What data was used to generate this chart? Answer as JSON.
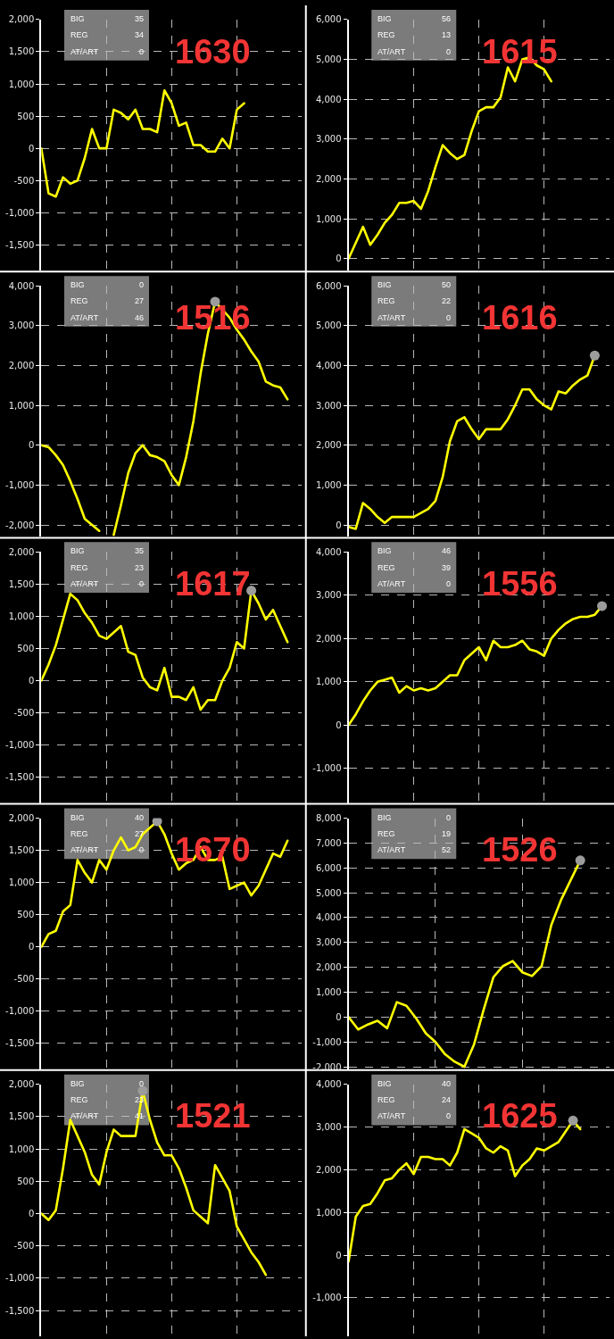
{
  "chart_data": [
    {
      "type": "line",
      "title": "1630",
      "categories": [
        null,
        null,
        null,
        null,
        null,
        null,
        null,
        null,
        null,
        null,
        null,
        null,
        null,
        null,
        null,
        null,
        null,
        null,
        null,
        null,
        null,
        null,
        null,
        null,
        null,
        null,
        null,
        null,
        null,
        null,
        null,
        null,
        null,
        null,
        null,
        null,
        null
      ],
      "series": [
        {
          "color": "#ffff00",
          "values": [
            0,
            -700,
            -750,
            -450,
            -550,
            -500,
            -150,
            300,
            0,
            0,
            600,
            550,
            450,
            600,
            300,
            300,
            250,
            900,
            700,
            350,
            400,
            50,
            50,
            -50,
            -50,
            150,
            0,
            600,
            700,
            null,
            null,
            null,
            null,
            null,
            null,
            null,
            null
          ]
        }
      ],
      "ylim": [
        -1900,
        2000
      ],
      "yticks": [
        {
          "value": 2000,
          "label": "2,000"
        },
        {
          "value": 1500,
          "label": "1,500"
        },
        {
          "value": 1000,
          "label": "1,000"
        },
        500,
        0,
        -500,
        {
          "value": -1000,
          "label": "-1,000"
        },
        {
          "value": -1500,
          "label": "-1,500"
        }
      ],
      "grid": true,
      "tick_labels": "y",
      "annotations": [
        "BIG",
        "35",
        "REG",
        "34",
        "AT/ART",
        "0"
      ]
    },
    {
      "type": "line",
      "title": "1615",
      "categories": [
        null,
        null,
        null,
        null,
        null,
        null,
        null,
        null,
        null,
        null,
        null,
        null,
        null,
        null,
        null,
        null,
        null,
        null,
        null,
        null,
        null,
        null,
        null,
        null,
        null,
        null,
        null,
        null,
        null,
        null,
        null,
        null,
        null,
        null,
        null,
        null,
        null
      ],
      "series": [
        {
          "color": "#ffff00",
          "values": [
            0,
            400,
            800,
            350,
            600,
            900,
            1100,
            1400,
            1400,
            1450,
            1250,
            1700,
            2300,
            2850,
            2650,
            2500,
            2600,
            3200,
            3700,
            3800,
            3800,
            4050,
            4800,
            4450,
            5000,
            5050,
            4850,
            4750,
            4450,
            null,
            null,
            null,
            null,
            null,
            null,
            null,
            null
          ]
        }
      ],
      "ylim": [
        -300,
        6000
      ],
      "yticks": [
        {
          "value": 6000,
          "label": "6,000"
        },
        {
          "value": 5000,
          "label": "5,000"
        },
        {
          "value": 4000,
          "label": "4,000"
        },
        {
          "value": 3000,
          "label": "3,000"
        },
        {
          "value": 2000,
          "label": "2,000"
        },
        {
          "value": 1000,
          "label": "1,000"
        },
        0
      ],
      "grid": true,
      "tick_labels": "y",
      "annotations": [
        "BIG",
        "56",
        "REG",
        "13",
        "AT/ART",
        "0"
      ]
    },
    {
      "type": "line",
      "title": "1516",
      "categories": [
        null,
        null,
        null,
        null,
        null,
        null,
        null,
        null,
        null,
        null,
        null,
        null,
        null,
        null,
        null,
        null,
        null,
        null,
        null,
        null,
        null,
        null,
        null,
        null,
        null,
        null,
        null,
        null,
        null,
        null,
        null,
        null,
        null,
        null,
        null,
        null,
        null
      ],
      "series": [
        {
          "color": "#ffff00",
          "values": [
            0,
            -50,
            -250,
            -500,
            -900,
            -1350,
            -1850,
            -2000,
            -2150,
            null,
            -2250,
            -1500,
            -700,
            -200,
            0,
            -250,
            -300,
            -400,
            -750,
            -1000,
            -300,
            600,
            1800,
            2800,
            3600,
            3400,
            3200,
            2900,
            2650,
            2350,
            2100,
            1600,
            1500,
            1450,
            1150,
            null,
            null
          ]
        },
        {
          "type": "scatter",
          "color": "#9c9c9c",
          "values": [
            null,
            null,
            null,
            null,
            null,
            null,
            null,
            null,
            null,
            null,
            null,
            null,
            null,
            null,
            null,
            null,
            null,
            null,
            null,
            null,
            null,
            null,
            null,
            null,
            3600,
            null,
            null,
            null,
            null,
            null,
            null,
            null,
            null,
            null,
            null,
            null,
            null
          ]
        }
      ],
      "ylim": [
        -2300,
        4000
      ],
      "yticks": [
        {
          "value": 4000,
          "label": "4,000"
        },
        {
          "value": 3000,
          "label": "3,000"
        },
        {
          "value": 2000,
          "label": "2,000"
        },
        {
          "value": 1000,
          "label": "1,000"
        },
        0,
        {
          "value": -1000,
          "label": "-1,000"
        },
        {
          "value": -2000,
          "label": "-2,000"
        }
      ],
      "grid": true,
      "tick_labels": "y",
      "annotations": [
        "BIG",
        "0",
        "REG",
        "27",
        "AT/ART",
        "46"
      ]
    },
    {
      "type": "line",
      "title": "1616",
      "categories": [
        null,
        null,
        null,
        null,
        null,
        null,
        null,
        null,
        null,
        null,
        null,
        null,
        null,
        null,
        null,
        null,
        null,
        null,
        null,
        null,
        null,
        null,
        null,
        null,
        null,
        null,
        null,
        null,
        null,
        null,
        null,
        null,
        null,
        null,
        null,
        null,
        null
      ],
      "series": [
        {
          "color": "#ffff00",
          "values": [
            -50,
            -100,
            550,
            400,
            200,
            50,
            200,
            200,
            200,
            200,
            300,
            400,
            600,
            1200,
            2100,
            2600,
            2700,
            2400,
            2150,
            2400,
            2400,
            2400,
            2650,
            3000,
            3400,
            3400,
            3150,
            3000,
            2900,
            3350,
            3300,
            3500,
            3650,
            3750,
            4250,
            null,
            null
          ]
        },
        {
          "type": "scatter",
          "color": "#9c9c9c",
          "values": [
            null,
            null,
            null,
            null,
            null,
            null,
            null,
            null,
            null,
            null,
            null,
            null,
            null,
            null,
            null,
            null,
            null,
            null,
            null,
            null,
            null,
            null,
            null,
            null,
            null,
            null,
            null,
            null,
            null,
            null,
            null,
            null,
            null,
            null,
            4250,
            null,
            null
          ]
        }
      ],
      "ylim": [
        -300,
        6000
      ],
      "yticks": [
        {
          "value": 6000,
          "label": "6,000"
        },
        {
          "value": 5000,
          "label": "5,000"
        },
        {
          "value": 4000,
          "label": "4,000"
        },
        {
          "value": 3000,
          "label": "3,000"
        },
        {
          "value": 2000,
          "label": "2,000"
        },
        {
          "value": 1000,
          "label": "1,000"
        },
        0
      ],
      "grid": true,
      "tick_labels": "y",
      "annotations": [
        "BIG",
        "50",
        "REG",
        "22",
        "AT/ART",
        "0"
      ]
    },
    {
      "type": "line",
      "title": "1617",
      "categories": [
        null,
        null,
        null,
        null,
        null,
        null,
        null,
        null,
        null,
        null,
        null,
        null,
        null,
        null,
        null,
        null,
        null,
        null,
        null,
        null,
        null,
        null,
        null,
        null,
        null,
        null,
        null,
        null,
        null,
        null,
        null,
        null,
        null,
        null,
        null,
        null,
        null
      ],
      "series": [
        {
          "color": "#ffff00",
          "values": [
            0,
            250,
            550,
            950,
            1350,
            1250,
            1050,
            900,
            700,
            650,
            750,
            850,
            450,
            400,
            50,
            -100,
            -150,
            200,
            -250,
            -250,
            -300,
            -100,
            -450,
            -300,
            -300,
            0,
            200,
            600,
            500,
            1400,
            1200,
            950,
            1100,
            850,
            600,
            null,
            null
          ]
        },
        {
          "type": "scatter",
          "color": "#9c9c9c",
          "values": [
            null,
            null,
            null,
            null,
            null,
            null,
            null,
            null,
            null,
            null,
            null,
            null,
            null,
            null,
            null,
            null,
            null,
            null,
            null,
            null,
            null,
            null,
            null,
            null,
            null,
            null,
            null,
            null,
            null,
            1400,
            null,
            null,
            null,
            null,
            null,
            null,
            null
          ]
        }
      ],
      "ylim": [
        -1900,
        2000
      ],
      "yticks": [
        {
          "value": 2000,
          "label": "2,000"
        },
        {
          "value": 1500,
          "label": "1,500"
        },
        {
          "value": 1000,
          "label": "1,000"
        },
        500,
        0,
        -500,
        {
          "value": -1000,
          "label": "-1,000"
        },
        {
          "value": -1500,
          "label": "-1,500"
        }
      ],
      "grid": true,
      "tick_labels": "y",
      "annotations": [
        "BIG",
        "35",
        "REG",
        "23",
        "AT/ART",
        "0"
      ]
    },
    {
      "type": "line",
      "title": "1556",
      "categories": [
        null,
        null,
        null,
        null,
        null,
        null,
        null,
        null,
        null,
        null,
        null,
        null,
        null,
        null,
        null,
        null,
        null,
        null,
        null,
        null,
        null,
        null,
        null,
        null,
        null,
        null,
        null,
        null,
        null,
        null,
        null,
        null,
        null,
        null,
        null,
        null,
        null
      ],
      "series": [
        {
          "color": "#ffff00",
          "values": [
            0,
            250,
            550,
            800,
            1000,
            1050,
            1100,
            750,
            900,
            800,
            850,
            800,
            850,
            1000,
            1150,
            1150,
            1500,
            1650,
            1800,
            1500,
            1950,
            1800,
            1800,
            1850,
            1950,
            1750,
            1700,
            1600,
            2000,
            2200,
            2350,
            2450,
            2500,
            2500,
            2550,
            2750,
            null
          ]
        },
        {
          "type": "scatter",
          "color": "#9c9c9c",
          "values": [
            null,
            null,
            null,
            null,
            null,
            null,
            null,
            null,
            null,
            null,
            null,
            null,
            null,
            null,
            null,
            null,
            null,
            null,
            null,
            null,
            null,
            null,
            null,
            null,
            null,
            null,
            null,
            null,
            null,
            null,
            null,
            null,
            null,
            null,
            null,
            2750,
            null
          ]
        }
      ],
      "ylim": [
        -1800,
        4000
      ],
      "yticks": [
        {
          "value": 4000,
          "label": "4,000"
        },
        {
          "value": 3000,
          "label": "3,000"
        },
        {
          "value": 2000,
          "label": "2,000"
        },
        {
          "value": 1000,
          "label": "1,000"
        },
        0,
        {
          "value": -1000,
          "label": "-1,000"
        }
      ],
      "grid": true,
      "tick_labels": "y",
      "annotations": [
        "BIG",
        "46",
        "REG",
        "39",
        "AT/ART",
        "0"
      ]
    },
    {
      "type": "line",
      "title": "1670",
      "categories": [
        null,
        null,
        null,
        null,
        null,
        null,
        null,
        null,
        null,
        null,
        null,
        null,
        null,
        null,
        null,
        null,
        null,
        null,
        null,
        null,
        null,
        null,
        null,
        null,
        null,
        null,
        null,
        null,
        null,
        null,
        null,
        null,
        null,
        null,
        null,
        null,
        null
      ],
      "series": [
        {
          "color": "#ffff00",
          "values": [
            0,
            200,
            250,
            550,
            650,
            1350,
            1150,
            1000,
            1350,
            1200,
            1500,
            1700,
            1500,
            1550,
            1750,
            1850,
            1950,
            1750,
            1450,
            1200,
            1300,
            1350,
            1550,
            1350,
            1350,
            1400,
            900,
            950,
            1000,
            800,
            950,
            1200,
            1450,
            1400,
            1650,
            null,
            null
          ]
        },
        {
          "type": "scatter",
          "color": "#9c9c9c",
          "values": [
            null,
            null,
            null,
            null,
            null,
            null,
            null,
            null,
            null,
            null,
            null,
            null,
            null,
            null,
            null,
            null,
            1950,
            null,
            null,
            null,
            null,
            null,
            null,
            null,
            null,
            null,
            null,
            null,
            null,
            null,
            null,
            null,
            null,
            null,
            null,
            null,
            null
          ]
        }
      ],
      "ylim": [
        -1900,
        2000
      ],
      "yticks": [
        {
          "value": 2000,
          "label": "2,000"
        },
        {
          "value": 1500,
          "label": "1,500"
        },
        {
          "value": 1000,
          "label": "1,000"
        },
        500,
        0,
        -500,
        {
          "value": -1000,
          "label": "-1,000"
        },
        {
          "value": -1500,
          "label": "-1,500"
        }
      ],
      "grid": true,
      "tick_labels": "y",
      "annotations": [
        "BIG",
        "40",
        "REG",
        "27",
        "AT/ART",
        "0"
      ]
    },
    {
      "type": "line",
      "title": "1526",
      "categories": [
        null,
        null,
        null,
        null,
        null,
        null,
        null,
        null,
        null,
        null,
        null,
        null,
        null,
        null,
        null,
        null,
        null,
        null,
        null,
        null,
        null,
        null,
        null,
        null,
        null,
        null,
        null,
        null
      ],
      "series": [
        {
          "color": "#ffff00",
          "values": [
            0,
            -500,
            -300,
            -150,
            -450,
            600,
            450,
            -50,
            -650,
            -1000,
            -1500,
            -1800,
            -2000,
            -1100,
            300,
            1600,
            2050,
            2250,
            1800,
            1650,
            2050,
            3700,
            4700,
            5500,
            6300,
            null,
            null,
            null
          ]
        },
        {
          "type": "scatter",
          "color": "#9c9c9c",
          "values": [
            null,
            null,
            null,
            null,
            null,
            null,
            null,
            null,
            null,
            null,
            null,
            null,
            null,
            null,
            null,
            null,
            null,
            null,
            null,
            null,
            null,
            null,
            null,
            null,
            6300,
            null,
            null,
            null
          ]
        }
      ],
      "ylim": [
        -2100,
        8000
      ],
      "yticks": [
        {
          "value": 8000,
          "label": "8,000"
        },
        {
          "value": 7000,
          "label": "7,000"
        },
        {
          "value": 6000,
          "label": "6,000"
        },
        {
          "value": 5000,
          "label": "5,000"
        },
        {
          "value": 4000,
          "label": "4,000"
        },
        {
          "value": 3000,
          "label": "3,000"
        },
        {
          "value": 2000,
          "label": "2,000"
        },
        {
          "value": 1000,
          "label": "1,000"
        },
        0,
        {
          "value": -1000,
          "label": "-1,000"
        },
        {
          "value": -2000,
          "label": "-2,000"
        }
      ],
      "grid": true,
      "tick_labels": "y",
      "annotations": [
        "BIG",
        "0",
        "REG",
        "19",
        "AT/ART",
        "52"
      ]
    },
    {
      "type": "line",
      "title": "1521",
      "categories": [
        null,
        null,
        null,
        null,
        null,
        null,
        null,
        null,
        null,
        null,
        null,
        null,
        null,
        null,
        null,
        null,
        null,
        null,
        null,
        null,
        null,
        null,
        null,
        null,
        null,
        null,
        null,
        null,
        null,
        null,
        null,
        null,
        null,
        null,
        null,
        null,
        null
      ],
      "series": [
        {
          "color": "#ffff00",
          "values": [
            0,
            -100,
            50,
            700,
            1450,
            1200,
            950,
            600,
            450,
            950,
            1300,
            1200,
            1200,
            1200,
            1900,
            1450,
            1100,
            900,
            900,
            700,
            400,
            50,
            -50,
            -150,
            750,
            550,
            350,
            -200,
            -400,
            -600,
            -750,
            -950,
            null,
            null,
            null,
            null,
            null
          ]
        },
        {
          "type": "scatter",
          "color": "#9c9c9c",
          "values": [
            null,
            null,
            null,
            null,
            null,
            null,
            null,
            null,
            null,
            null,
            null,
            null,
            null,
            null,
            1900,
            null,
            null,
            null,
            null,
            null,
            null,
            null,
            null,
            null,
            null,
            null,
            null,
            null,
            null,
            null,
            null,
            null,
            null,
            null,
            null,
            null,
            null
          ]
        }
      ],
      "ylim": [
        -1900,
        2000
      ],
      "yticks": [
        {
          "value": 2000,
          "label": "2,000"
        },
        {
          "value": 1500,
          "label": "1,500"
        },
        {
          "value": 1000,
          "label": "1,000"
        },
        500,
        0,
        -500,
        {
          "value": -1000,
          "label": "-1,000"
        },
        {
          "value": -1500,
          "label": "-1,500"
        }
      ],
      "grid": true,
      "tick_labels": "y",
      "annotations": [
        "BIG",
        "0",
        "REG",
        "23",
        "AT/ART",
        "41"
      ]
    },
    {
      "type": "line",
      "title": "1625",
      "categories": [
        null,
        null,
        null,
        null,
        null,
        null,
        null,
        null,
        null,
        null,
        null,
        null,
        null,
        null,
        null,
        null,
        null,
        null,
        null,
        null,
        null,
        null,
        null,
        null,
        null,
        null,
        null,
        null,
        null,
        null,
        null,
        null,
        null,
        null,
        null,
        null,
        null
      ],
      "series": [
        {
          "color": "#ffff00",
          "values": [
            -150,
            900,
            1150,
            1200,
            1450,
            1750,
            1800,
            2000,
            2150,
            1900,
            2300,
            2300,
            2250,
            2250,
            2100,
            2400,
            2950,
            2850,
            2750,
            2500,
            2400,
            2550,
            2450,
            1850,
            2100,
            2250,
            2500,
            2450,
            2550,
            2650,
            2900,
            3150,
            2950,
            null,
            null,
            null,
            null
          ]
        },
        {
          "type": "scatter",
          "color": "#9c9c9c",
          "values": [
            null,
            null,
            null,
            null,
            null,
            null,
            null,
            null,
            null,
            null,
            null,
            null,
            null,
            null,
            null,
            null,
            null,
            null,
            null,
            null,
            null,
            null,
            null,
            null,
            null,
            null,
            null,
            null,
            null,
            null,
            null,
            3150,
            null,
            null,
            null,
            null,
            null
          ]
        }
      ],
      "ylim": [
        -1900,
        4000
      ],
      "yticks": [
        {
          "value": 4000,
          "label": "4,000"
        },
        {
          "value": 3000,
          "label": "3,000"
        },
        {
          "value": 2000,
          "label": "2,000"
        },
        {
          "value": 1000,
          "label": "1,000"
        },
        0,
        {
          "value": -1000,
          "label": "-1,000"
        }
      ],
      "grid": true,
      "tick_labels": "y",
      "annotations": [
        "BIG",
        "40",
        "REG",
        "24",
        "AT/ART",
        "0"
      ]
    }
  ]
}
